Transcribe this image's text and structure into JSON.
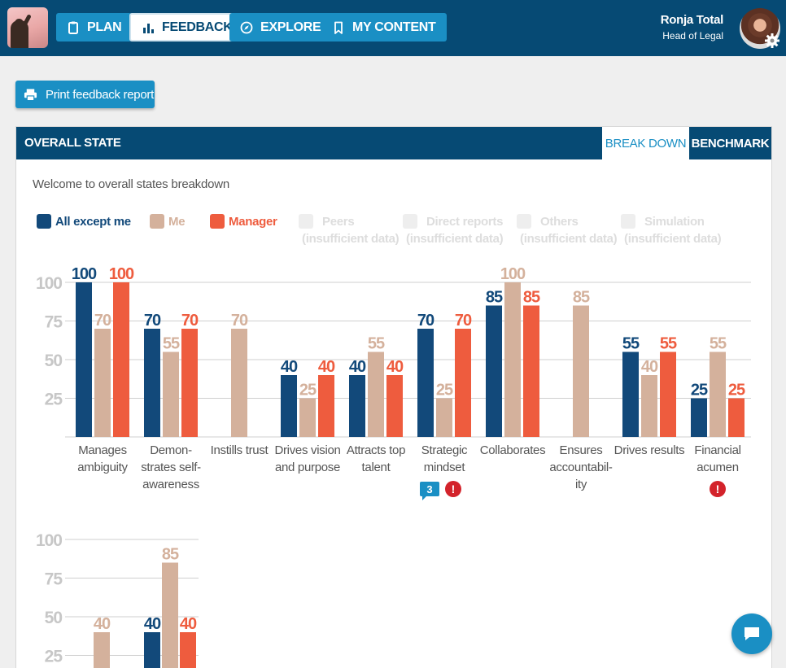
{
  "nav": {
    "items": [
      {
        "label": "PLAN",
        "icon": "clipboard-icon"
      },
      {
        "label": "FEEDBACK",
        "icon": "bar-chart-icon",
        "active": true
      },
      {
        "label": "EXPLORE",
        "icon": "compass-icon"
      },
      {
        "label": "MY CONTENT",
        "icon": "bookmark-icon"
      }
    ]
  },
  "user": {
    "name": "Ronja Total",
    "role": "Head of Legal"
  },
  "actions": {
    "print_label": "Print feedback report"
  },
  "card": {
    "title": "OVERALL STATE",
    "tabs": [
      {
        "label": "BREAK DOWN",
        "active": true
      },
      {
        "label": "BENCHMARK"
      }
    ],
    "welcome": "Welcome to overall states breakdown"
  },
  "legend": [
    {
      "label": "All except me",
      "color": "#12497a",
      "enabled": true
    },
    {
      "label": "Me",
      "color": "#d4b19c",
      "enabled": true
    },
    {
      "label": "Manager",
      "color": "#ee5c3e",
      "enabled": true
    },
    {
      "label": "Peers",
      "note": "(insufficient data)",
      "enabled": false
    },
    {
      "label": "Direct reports",
      "note": "(insufficient data)",
      "enabled": false
    },
    {
      "label": "Others",
      "note": "(insufficient data)",
      "enabled": false
    },
    {
      "label": "Simulation",
      "note": "(insufficient data)",
      "enabled": false
    }
  ],
  "chart_data": [
    {
      "type": "bar",
      "y_ticks": [
        100,
        75,
        50,
        25
      ],
      "ylim": [
        0,
        100
      ],
      "grid": true,
      "categories": [
        "Manages ambiguity",
        "Demon-strates self-awareness",
        "Instills trust",
        "Drives vision and purpose",
        "Attracts top talent",
        "Strategic mindset",
        "Collaborates",
        "Ensures accountabil-ity",
        "Drives results",
        "Financial acumen"
      ],
      "series": [
        {
          "name": "All except me",
          "values": [
            100,
            70,
            null,
            40,
            40,
            70,
            85,
            null,
            55,
            25
          ]
        },
        {
          "name": "Me",
          "values": [
            70,
            55,
            70,
            25,
            55,
            25,
            100,
            85,
            40,
            55
          ]
        },
        {
          "name": "Manager",
          "values": [
            100,
            70,
            null,
            40,
            40,
            70,
            85,
            null,
            55,
            25
          ]
        }
      ],
      "badges": [
        {
          "category": "Strategic mindset",
          "comments": "3",
          "alert": "!"
        },
        {
          "category": "Financial acumen",
          "alert": "!"
        }
      ]
    },
    {
      "type": "bar",
      "y_ticks": [
        100,
        75,
        50,
        25
      ],
      "ylim": [
        0,
        100
      ],
      "grid": true,
      "categories": [
        "",
        ""
      ],
      "series": [
        {
          "name": "All except me",
          "values": [
            null,
            40
          ]
        },
        {
          "name": "Me",
          "values": [
            40,
            85
          ]
        },
        {
          "name": "Manager",
          "values": [
            null,
            40
          ]
        }
      ]
    }
  ]
}
